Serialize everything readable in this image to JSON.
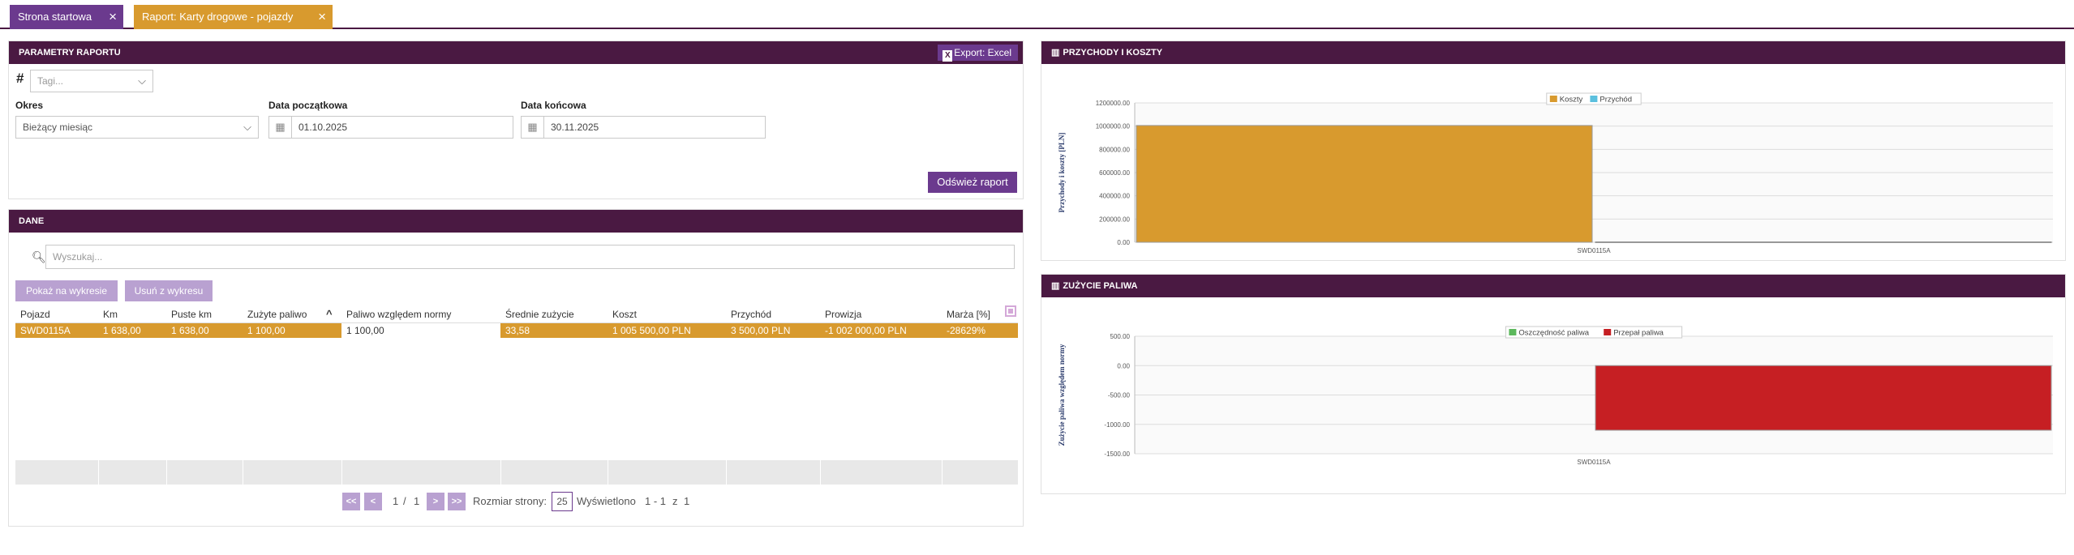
{
  "tabs": [
    {
      "label": "Strona startowa",
      "close": "×"
    },
    {
      "label": "Raport: Karty drogowe - pojazdy",
      "close": "×"
    }
  ],
  "params": {
    "title": "PARAMETRY RAPORTU",
    "export_label": "Export: Excel",
    "tags_icon": "#",
    "tags_placeholder": "Tagi...",
    "period_label": "Okres",
    "period_value": "Bieżący miesiąc",
    "start_label": "Data początkowa",
    "start_value": "01.10.2025",
    "end_label": "Data końcowa",
    "end_value": "30.11.2025",
    "refresh_label": "Odśwież raport"
  },
  "data": {
    "title": "DANE",
    "search_placeholder": "Wyszukaj...",
    "show_chart": "Pokaż na wykresie",
    "remove_chart": "Usuń z wykresu",
    "columns": [
      "Pojazd",
      "Km",
      "Puste km",
      "Zużyte paliwo",
      "Paliwo względem normy",
      "Średnie zużycie",
      "Koszt",
      "Przychód",
      "Prowizja",
      "Marża [%]"
    ],
    "rows": [
      [
        "SWD0115A",
        "1 638,00",
        "1 638,00",
        "1 100,00",
        "1 100,00",
        "33,58",
        "1 005 500,00 PLN",
        "3 500,00 PLN",
        "-1 002 000,00 PLN",
        "-28629%"
      ]
    ],
    "pagination": {
      "first": "<<",
      "prev": "<",
      "page": "1",
      "sep": "/",
      "pages": "1",
      "next": ">",
      "last": ">>",
      "size_label": "Rozmiar strony:",
      "size_value": "25",
      "shown_label": "Wyświetlono",
      "shown_range": "1 - 1",
      "of": "z",
      "total": "1"
    }
  },
  "income_chart": {
    "title": "PRZYCHODY I KOSZTY",
    "chart_data": {
      "type": "bar",
      "categories": [
        "SWD0115A"
      ],
      "series": [
        {
          "name": "Koszty",
          "values": [
            1005500
          ],
          "color": "#d89a2e"
        },
        {
          "name": "Przychód",
          "values": [
            3500
          ],
          "color": "#5bc0de"
        }
      ],
      "ylabel": "Przychody i koszty [PLN]",
      "yticks": [
        "0.00",
        "200000.00",
        "400000.00",
        "600000.00",
        "800000.00",
        "1000000.00",
        "1200000.00"
      ],
      "ylim": [
        0,
        1200000
      ],
      "legend": "top-center"
    }
  },
  "fuel_chart": {
    "title": "ZUŻYCIE PALIWA",
    "chart_data": {
      "type": "bar",
      "categories": [
        "SWD0115A"
      ],
      "series": [
        {
          "name": "Oszczędność paliwa",
          "values": [
            0
          ],
          "color": "#5cb85c"
        },
        {
          "name": "Przepał paliwa",
          "values": [
            -1100
          ],
          "color": "#c61f23"
        }
      ],
      "ylabel": "Zużycie paliwa względem normy",
      "yticks": [
        "-1500.00",
        "-1000.00",
        "-500.00",
        "0.00",
        "500.00"
      ],
      "ylim": [
        -1500,
        500
      ],
      "legend": "top-center"
    }
  }
}
